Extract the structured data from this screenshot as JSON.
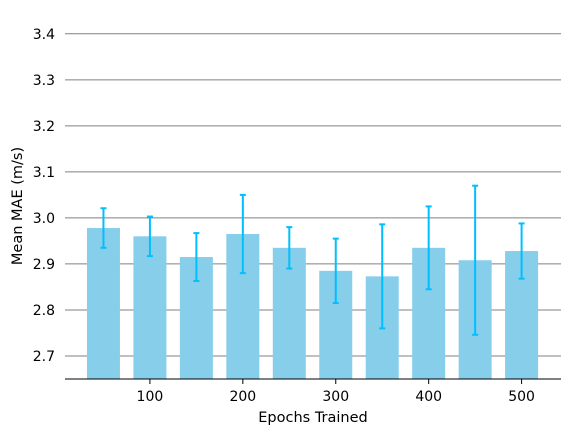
{
  "chart_data": {
    "type": "bar",
    "title": "",
    "xlabel": "Epochs Trained",
    "ylabel": "Mean MAE (m/s)",
    "x": [
      50,
      100,
      150,
      200,
      250,
      300,
      350,
      400,
      450,
      500
    ],
    "values": [
      2.978,
      2.96,
      2.915,
      2.965,
      2.935,
      2.885,
      2.873,
      2.935,
      2.908,
      2.928
    ],
    "error": [
      0.043,
      0.043,
      0.052,
      0.085,
      0.045,
      0.07,
      0.113,
      0.09,
      0.162,
      0.06
    ],
    "x_ticks": [
      "100",
      "200",
      "300",
      "400",
      "500"
    ],
    "y_ticks": [
      "2.7",
      "2.8",
      "2.9",
      "3.0",
      "3.1",
      "3.2",
      "3.3",
      "3.4"
    ],
    "ylim": [
      2.65,
      3.43
    ],
    "grid": "horizontal",
    "colors": {
      "bar": "#87ceeb",
      "error_bar": "#00bfff",
      "grid": "#808080",
      "axis": "#000000"
    }
  }
}
